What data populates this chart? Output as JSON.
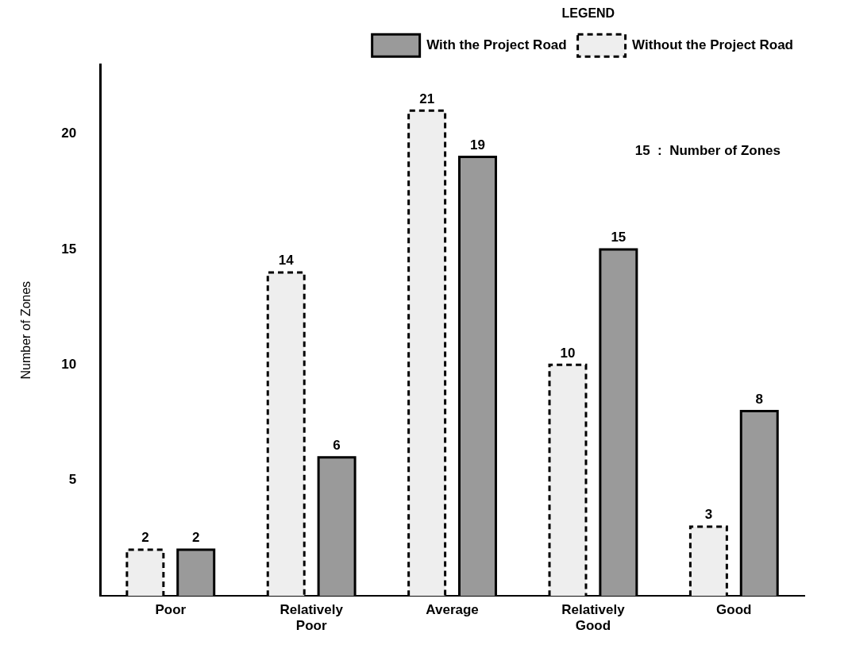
{
  "chart_data": {
    "type": "bar",
    "ylabel": "Number of Zones",
    "legend_title": "LEGEND",
    "categories": [
      "Poor",
      "Relatively Poor",
      "Average",
      "Relatively Good",
      "Good"
    ],
    "series": [
      {
        "name": "Without the Project Road",
        "color": "#eeeeee",
        "values": [
          2,
          14,
          21,
          10,
          3
        ]
      },
      {
        "name": "With the Project Road",
        "color": "#9a9a9a",
        "values": [
          2,
          6,
          19,
          15,
          8
        ]
      }
    ],
    "ylim": [
      0,
      23
    ],
    "yticks": [
      5,
      10,
      15,
      20
    ],
    "grid": false,
    "legend": "top right",
    "data_labels": true,
    "annotations": [
      "15  :  Number of Zones"
    ]
  }
}
